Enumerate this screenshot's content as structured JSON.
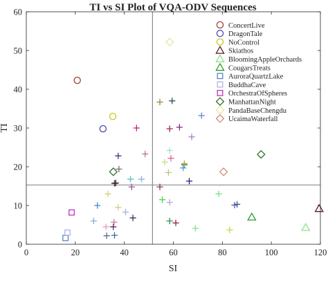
{
  "chart_data": {
    "type": "scatter",
    "title": "TI vs SI Plot of VQA-ODV Sequences",
    "xlabel": "SI",
    "ylabel": "TI",
    "xlim": [
      0,
      120
    ],
    "ylim": [
      0,
      60
    ],
    "xticks": [
      "0",
      "20",
      "40",
      "60",
      "80",
      "100",
      "120"
    ],
    "yticks": [
      "0",
      "10",
      "20",
      "30",
      "40",
      "50",
      "60"
    ],
    "grid": false,
    "legend_position": "top-right",
    "mean_lines": {
      "x": 51.5,
      "y": 15.3
    },
    "series": [
      {
        "name": "ConcertLive",
        "marker": "circle",
        "color": "#a0403a",
        "points": [
          [
            20.8,
            42.3
          ]
        ]
      },
      {
        "name": "DragonTale",
        "marker": "circle",
        "color": "#4a4ab0",
        "points": [
          [
            31.3,
            29.8
          ]
        ]
      },
      {
        "name": "NoControl",
        "marker": "circle",
        "color": "#c8c81e",
        "points": [
          [
            35.3,
            33
          ]
        ]
      },
      {
        "name": "Skiathos",
        "marker": "triangle",
        "color": "#5a1a28",
        "points": [
          [
            119.5,
            9.2
          ]
        ]
      },
      {
        "name": "BloomingAppleOrchards",
        "marker": "triangle",
        "color": "#8fe08f",
        "points": [
          [
            114,
            4.3
          ]
        ]
      },
      {
        "name": "CougarsTreats",
        "marker": "triangle",
        "color": "#2e9a2e",
        "points": [
          [
            92,
            7
          ]
        ]
      },
      {
        "name": "AuroraQuartzLake",
        "marker": "square",
        "color": "#5a80c8",
        "points": [
          [
            16,
            1.6
          ]
        ]
      },
      {
        "name": "BuddhaCave",
        "marker": "square",
        "color": "#b0b0e6",
        "points": [
          [
            16.8,
            3
          ]
        ]
      },
      {
        "name": "OrchestraOfSpheres",
        "marker": "square",
        "color": "#c030c0",
        "points": [
          [
            18.5,
            8.2
          ]
        ]
      },
      {
        "name": "ManhattanNight",
        "marker": "diamond",
        "color": "#2e6e2e",
        "points": [
          [
            35.5,
            18.7
          ],
          [
            95.8,
            23.2
          ]
        ]
      },
      {
        "name": "PandaBaseChengdu",
        "marker": "diamond",
        "color": "#e6e6a0",
        "points": [
          [
            58.5,
            52.2
          ]
        ]
      },
      {
        "name": "UcaimaWaterfall",
        "marker": "diamond",
        "color": "#d08a7a",
        "points": [
          [
            80.5,
            18.7
          ]
        ]
      },
      {
        "name": "",
        "marker": "plus",
        "color": "#8c8c3c",
        "points": [
          [
            54.5,
            36.7
          ]
        ]
      },
      {
        "name": "",
        "marker": "plus",
        "color": "#2e4e4e",
        "points": [
          [
            59.5,
            37
          ]
        ]
      },
      {
        "name": "",
        "marker": "plus",
        "color": "#a02050",
        "points": [
          [
            58.5,
            29.8
          ]
        ]
      },
      {
        "name": "",
        "marker": "plus",
        "color": "#c02080",
        "points": [
          [
            45,
            30
          ]
        ]
      },
      {
        "name": "",
        "marker": "plus",
        "color": "#8a2080",
        "points": [
          [
            62.5,
            30.2
          ]
        ]
      },
      {
        "name": "",
        "marker": "plus",
        "color": "#5a8ad0",
        "points": [
          [
            71.5,
            33.2
          ]
        ]
      },
      {
        "name": "",
        "marker": "plus",
        "color": "#9a80c8",
        "points": [
          [
            67.5,
            27.7
          ]
        ]
      },
      {
        "name": "",
        "marker": "plus",
        "color": "#b07a7a",
        "points": [
          [
            48.5,
            23.3
          ]
        ]
      },
      {
        "name": "",
        "marker": "plus",
        "color": "#3a3a8a",
        "points": [
          [
            37.5,
            22.8
          ]
        ]
      },
      {
        "name": "",
        "marker": "plus",
        "color": "#a0e0d0",
        "points": [
          [
            58.5,
            24.2
          ]
        ]
      },
      {
        "name": "",
        "marker": "plus",
        "color": "#e060a0",
        "points": [
          [
            59,
            22.2
          ]
        ]
      },
      {
        "name": "",
        "marker": "plus",
        "color": "#c0e080",
        "points": [
          [
            56.5,
            21.2
          ]
        ]
      },
      {
        "name": "",
        "marker": "plus",
        "color": "#2a8a2a",
        "points": [
          [
            64.5,
            20.5
          ]
        ]
      },
      {
        "name": "",
        "marker": "plus",
        "color": "#b0a040",
        "points": [
          [
            64.5,
            20.8
          ]
        ]
      },
      {
        "name": "",
        "marker": "plus",
        "color": "#5a9ad8",
        "points": [
          [
            64,
            19.7
          ]
        ]
      },
      {
        "name": "",
        "marker": "plus",
        "color": "#707070",
        "points": [
          [
            37.8,
            19.4
          ]
        ]
      },
      {
        "name": "",
        "marker": "plus",
        "color": "#c0c080",
        "points": [
          [
            58,
            18.5
          ]
        ]
      },
      {
        "name": "",
        "marker": "plus",
        "color": "#60c0c0",
        "points": [
          [
            42.5,
            16.8
          ]
        ]
      },
      {
        "name": "",
        "marker": "plus",
        "color": "#80b0e0",
        "points": [
          [
            47,
            16.8
          ]
        ]
      },
      {
        "name": "",
        "marker": "plus",
        "color": "#202040",
        "points": [
          [
            36.5,
            15.8
          ]
        ]
      },
      {
        "name": "",
        "marker": "plus",
        "color": "#4a2a2a",
        "points": [
          [
            36,
            15.7
          ]
        ]
      },
      {
        "name": "",
        "marker": "plus",
        "color": "#202080",
        "points": [
          [
            66.5,
            16.3
          ]
        ]
      },
      {
        "name": "",
        "marker": "plus",
        "color": "#a050a0",
        "points": [
          [
            43,
            14.8
          ]
        ]
      },
      {
        "name": "",
        "marker": "plus",
        "color": "#8a3a3a",
        "points": [
          [
            54.5,
            14.8
          ]
        ]
      },
      {
        "name": "",
        "marker": "plus",
        "color": "#d0d080",
        "points": [
          [
            33.3,
            13
          ]
        ]
      },
      {
        "name": "",
        "marker": "plus",
        "color": "#80e080",
        "points": [
          [
            78.5,
            13
          ]
        ]
      },
      {
        "name": "",
        "marker": "plus",
        "color": "#4ad04a",
        "points": [
          [
            55.5,
            11.5
          ]
        ]
      },
      {
        "name": "",
        "marker": "plus",
        "color": "#c0a0e0",
        "points": [
          [
            58.5,
            10.8
          ]
        ]
      },
      {
        "name": "",
        "marker": "plus",
        "color": "#3a8ad0",
        "points": [
          [
            29,
            10
          ]
        ]
      },
      {
        "name": "",
        "marker": "plus",
        "color": "#2e5e8e",
        "points": [
          [
            86,
            10.3
          ]
        ]
      },
      {
        "name": "",
        "marker": "plus",
        "color": "#5a5ab0",
        "points": [
          [
            85,
            10.1
          ]
        ]
      },
      {
        "name": "",
        "marker": "plus",
        "color": "#d0d080",
        "points": [
          [
            37.5,
            9.5
          ]
        ]
      },
      {
        "name": "",
        "marker": "plus",
        "color": "#a0b0e0",
        "points": [
          [
            40.5,
            8.3
          ]
        ]
      },
      {
        "name": "",
        "marker": "plus",
        "color": "#7ab0e0",
        "points": [
          [
            27.5,
            6
          ]
        ]
      },
      {
        "name": "",
        "marker": "plus",
        "color": "#2e8e4e",
        "points": [
          [
            58.5,
            6
          ]
        ]
      },
      {
        "name": "",
        "marker": "plus",
        "color": "#a02040",
        "points": [
          [
            61,
            5.5
          ]
        ]
      },
      {
        "name": "",
        "marker": "plus",
        "color": "#303060",
        "points": [
          [
            43.5,
            6.8
          ]
        ]
      },
      {
        "name": "",
        "marker": "plus",
        "color": "#c080a0",
        "points": [
          [
            35.8,
            5.7
          ]
        ]
      },
      {
        "name": "",
        "marker": "plus",
        "color": "#5a2a6a",
        "points": [
          [
            35.5,
            4.5
          ]
        ]
      },
      {
        "name": "",
        "marker": "plus",
        "color": "#e0a0c0",
        "points": [
          [
            32.5,
            4.5
          ]
        ]
      },
      {
        "name": "",
        "marker": "plus",
        "color": "#80e0a0",
        "points": [
          [
            69,
            4.1
          ]
        ]
      },
      {
        "name": "",
        "marker": "plus",
        "color": "#d0d040",
        "points": [
          [
            83,
            3.7
          ]
        ]
      },
      {
        "name": "",
        "marker": "plus",
        "color": "#6060a0",
        "points": [
          [
            32.8,
            2.2
          ]
        ]
      },
      {
        "name": "",
        "marker": "plus",
        "color": "#3a6a8a",
        "points": [
          [
            36,
            2.3
          ]
        ]
      }
    ]
  }
}
